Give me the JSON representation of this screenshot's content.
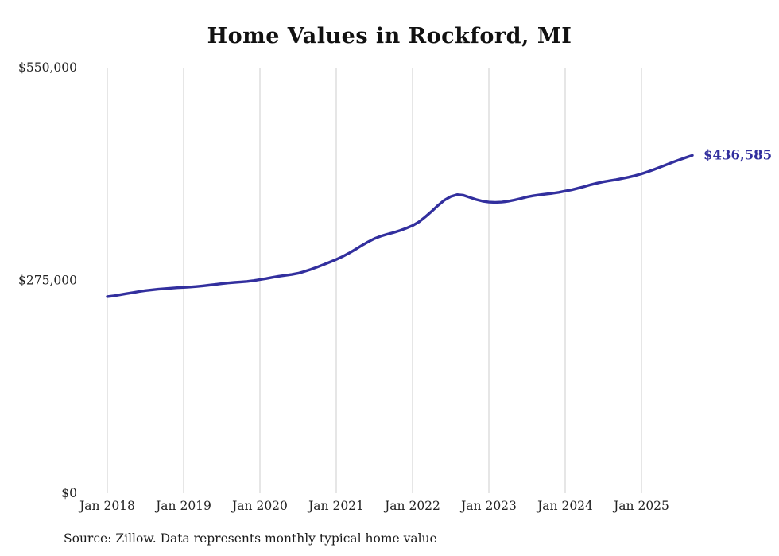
{
  "page": {
    "title": "Home Values in Rockford, MI",
    "source_note": "Source: Zillow. Data represents monthly typical home value"
  },
  "chart_data": {
    "type": "line",
    "title": "Home Values in Rockford, MI",
    "xlabel": "",
    "ylabel": "",
    "ylim": [
      0,
      550000
    ],
    "grid": "vertical-only",
    "line_color": "#322f9e",
    "grid_color": "#cccccc",
    "tick_text_color": "#222222",
    "end_label": "$436,585",
    "final_value": 436585,
    "x_start_month": "Jan 2018",
    "x_end_month": "Sep 2025",
    "x_ticks": [
      "Jan 2018",
      "Jan 2019",
      "Jan 2020",
      "Jan 2021",
      "Jan 2022",
      "Jan 2023",
      "Jan 2024",
      "Jan 2025"
    ],
    "months_per_tick": 12,
    "y_ticks": [
      {
        "label": "$550,000",
        "value": 550000
      },
      {
        "label": "$275,000",
        "value": 275000
      },
      {
        "label": "$0",
        "value": 0
      }
    ],
    "series": [
      {
        "name": "Monthly typical home value",
        "values": [
          254000,
          255000,
          256400,
          257800,
          259200,
          260600,
          261800,
          262800,
          263600,
          264300,
          264900,
          265500,
          266000,
          266500,
          267100,
          267900,
          268800,
          269800,
          270800,
          271700,
          272400,
          273000,
          273700,
          274700,
          276000,
          277400,
          278900,
          280300,
          281500,
          282600,
          284200,
          286500,
          289200,
          292200,
          295400,
          298600,
          302000,
          305800,
          310200,
          315000,
          320000,
          324800,
          329000,
          332200,
          334600,
          336800,
          339400,
          342400,
          345800,
          350600,
          357000,
          364200,
          371800,
          378600,
          383400,
          385800,
          385000,
          382200,
          379400,
          377400,
          376200,
          375800,
          376200,
          377200,
          378800,
          380800,
          382800,
          384400,
          385600,
          386600,
          387600,
          388800,
          390400,
          392000,
          394000,
          396200,
          398600,
          400600,
          402400,
          403800,
          405200,
          406800,
          408400,
          410400,
          412800,
          415400,
          418400,
          421600,
          424800,
          428000,
          431000,
          433800,
          436585
        ]
      }
    ]
  }
}
